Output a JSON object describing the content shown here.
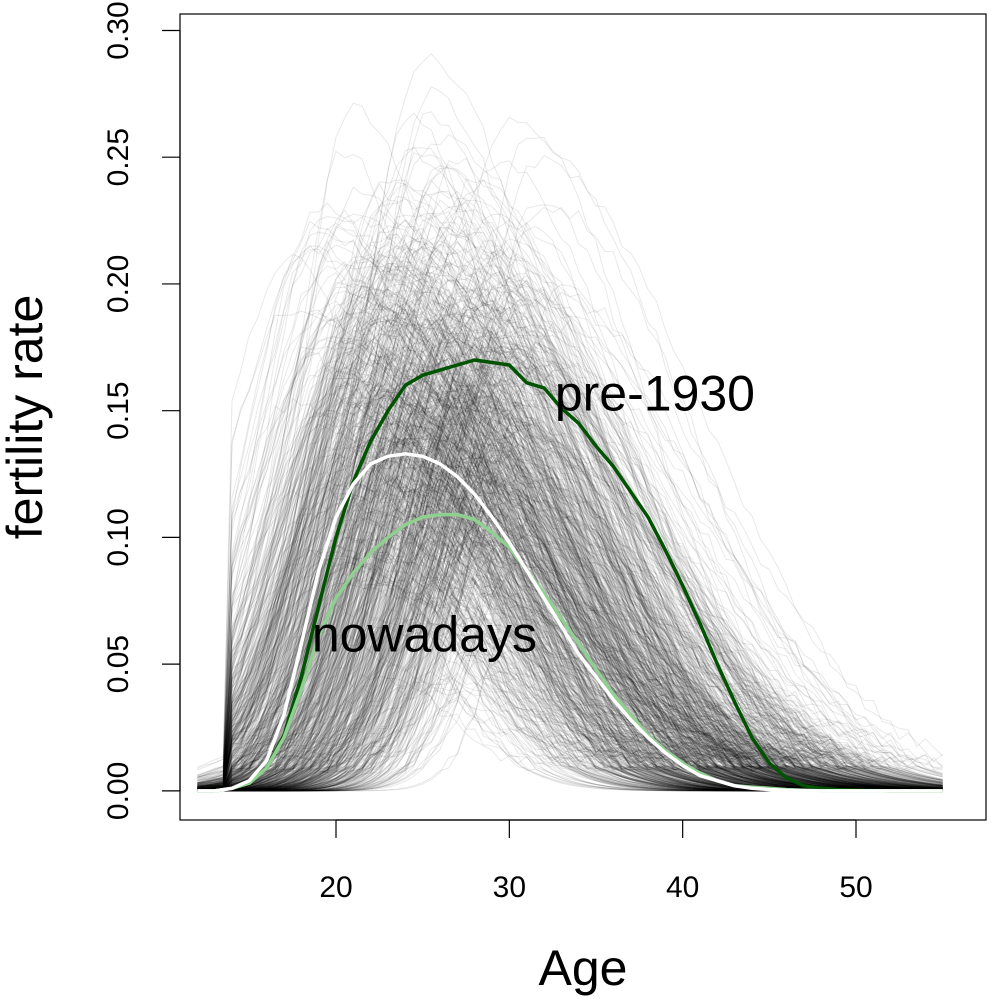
{
  "chart_data": {
    "type": "line",
    "title": "",
    "xlabel": "Age",
    "ylabel": "fertility rate",
    "xlim": [
      11,
      57.5
    ],
    "ylim": [
      -0.0115,
      0.3065
    ],
    "x_ticks": [
      20,
      30,
      40,
      50
    ],
    "y_ticks": [
      0.0,
      0.05,
      0.1,
      0.15,
      0.2,
      0.25,
      0.3
    ],
    "y_tick_labels": [
      "0.00",
      "0.05",
      "0.10",
      "0.15",
      "0.20",
      "0.25",
      "0.30"
    ],
    "grid": false,
    "background_curves": "many semi-transparent grey fertility-rate curves (country-years)",
    "background_color": "#000000",
    "series": [
      {
        "label": "pre-1930",
        "color": "#005300",
        "x": [
          12,
          13,
          14,
          15,
          16,
          17,
          18,
          19,
          20,
          21,
          22,
          23,
          24,
          25,
          26,
          27,
          28,
          29,
          30,
          31,
          32,
          33,
          34,
          35,
          36,
          37,
          38,
          39,
          40,
          41,
          42,
          43,
          44,
          45,
          46,
          47,
          48,
          49,
          50,
          51,
          52,
          53,
          54,
          55
        ],
        "y": [
          0,
          0,
          0.001,
          0.003,
          0.009,
          0.022,
          0.045,
          0.073,
          0.1,
          0.122,
          0.138,
          0.15,
          0.16,
          0.164,
          0.166,
          0.168,
          0.17,
          0.169,
          0.168,
          0.161,
          0.159,
          0.151,
          0.145,
          0.136,
          0.128,
          0.118,
          0.108,
          0.095,
          0.081,
          0.066,
          0.05,
          0.035,
          0.021,
          0.011,
          0.005,
          0.002,
          0.001,
          0.0005,
          0.0002,
          0.0001,
          0,
          0,
          0,
          0
        ]
      },
      {
        "label": "nowadays",
        "color": "#8fcf8f",
        "x": [
          12,
          13,
          14,
          15,
          16,
          17,
          18,
          19,
          20,
          21,
          22,
          23,
          24,
          25,
          26,
          27,
          28,
          29,
          30,
          31,
          32,
          33,
          34,
          35,
          36,
          37,
          38,
          39,
          40,
          41,
          42,
          43,
          44,
          45,
          46,
          47,
          48,
          49,
          50,
          51,
          52,
          53,
          54,
          55
        ],
        "y": [
          0,
          0,
          0.001,
          0.003,
          0.009,
          0.021,
          0.04,
          0.061,
          0.076,
          0.086,
          0.094,
          0.1,
          0.105,
          0.108,
          0.109,
          0.109,
          0.107,
          0.102,
          0.096,
          0.087,
          0.078,
          0.068,
          0.058,
          0.048,
          0.038,
          0.03,
          0.022,
          0.016,
          0.011,
          0.007,
          0.004,
          0.002,
          0.0015,
          0.001,
          0.0005,
          0.0002,
          0,
          0,
          0,
          0,
          0,
          0,
          0,
          0
        ]
      },
      {
        "label": "",
        "color": "#ffffff",
        "x": [
          12,
          13,
          14,
          15,
          16,
          17,
          18,
          19,
          20,
          21,
          22,
          23,
          24,
          25,
          26,
          27,
          28,
          29,
          30,
          31,
          32,
          33,
          34,
          35,
          36,
          37,
          38,
          39,
          40,
          41,
          42,
          43,
          44,
          45,
          46,
          47,
          48,
          49,
          50,
          51,
          52,
          53,
          54,
          55
        ],
        "y": [
          0,
          0,
          0.001,
          0.004,
          0.012,
          0.03,
          0.058,
          0.087,
          0.108,
          0.121,
          0.129,
          0.132,
          0.133,
          0.132,
          0.129,
          0.124,
          0.117,
          0.108,
          0.098,
          0.087,
          0.076,
          0.065,
          0.054,
          0.045,
          0.036,
          0.028,
          0.021,
          0.015,
          0.01,
          0.006,
          0.004,
          0.002,
          0.001,
          0.0005,
          0.0002,
          0.0001,
          0,
          0,
          0,
          0,
          0,
          0,
          0,
          0
        ]
      }
    ],
    "annotations": [
      {
        "text": "pre-1930",
        "x": 38.4,
        "y": 0.15
      },
      {
        "text": "nowadays",
        "x": 25.1,
        "y": 0.055
      }
    ]
  }
}
